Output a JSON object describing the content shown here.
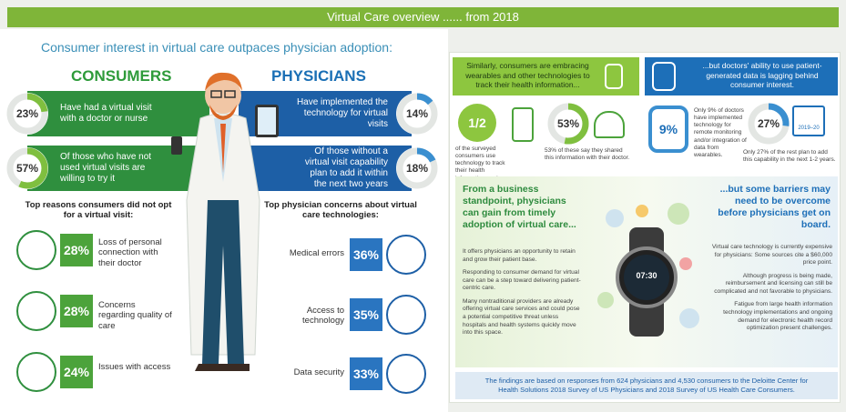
{
  "header": {
    "title": "Virtual Care overview ......  from 2018"
  },
  "left": {
    "subtitle": "Consumer interest in virtual care outpaces physician adoption:",
    "consumers": {
      "heading": "CONSUMERS",
      "stats": [
        {
          "value": 23,
          "label": "23%",
          "text": "Have had a virtual visit with a doctor or nurse"
        },
        {
          "value": 57,
          "label": "57%",
          "text": "Of those who have not used virtual visits are willing to try it"
        }
      ],
      "reasons_title": "Top reasons consumers did not opt for a virtual visit:",
      "reasons": [
        {
          "pct": "28%",
          "text": "Loss of personal connection with their doctor"
        },
        {
          "pct": "28%",
          "text": "Concerns regarding quality of care"
        },
        {
          "pct": "24%",
          "text": "Issues with access"
        }
      ]
    },
    "physicians": {
      "heading": "PHYSICIANS",
      "stats": [
        {
          "value": 14,
          "label": "14%",
          "text": "Have implemented the technology for virtual visits"
        },
        {
          "value": 18,
          "label": "18%",
          "text": "Of those without a virtual visit capability plan to add it within the next two years"
        }
      ],
      "concerns_title": "Top physician concerns about virtual care technologies:",
      "concerns": [
        {
          "pct": "36%",
          "text": "Medical errors"
        },
        {
          "pct": "35%",
          "text": "Access to technology"
        },
        {
          "pct": "33%",
          "text": "Data security"
        }
      ]
    }
  },
  "right": {
    "consumer_box": "Similarly, consumers are embracing wearables and other technologies to track their health information...",
    "fraction": "1/2",
    "fraction_text": "of the surveyed consumers use technology to track their health information, and...",
    "shared": {
      "value": 53,
      "label": "53%"
    },
    "shared_text": "53% of these say they shared this information with their doctor.",
    "doctor_box": "...but doctors' ability to use patient-generated data is lagging behind consumer interest.",
    "remote": "9%",
    "remote_text": "Only 9% of doctors have implemented technology for remote monitoring and/or integration of data from wearables.",
    "plan": {
      "value": 27,
      "label": "27%"
    },
    "calendar": "2019–20",
    "plan_text": "Only 27% of the rest plan to add this capability in the next 1-2 years.",
    "business": {
      "heading": "From a business standpoint, physicians can gain from timely adoption of virtual care...",
      "paragraphs": [
        "It offers physicians an opportunity to retain and grow their patient base.",
        "Responding to consumer demand for virtual care can be a step toward delivering patient-centric care.",
        "Many nontraditional providers are already offering virtual care services and could pose a potential competitive threat unless hospitals and health systems quickly move into this space."
      ]
    },
    "watch_time": "07:30",
    "barriers": {
      "heading": "...but some barriers may need to be overcome before physicians get on board.",
      "paragraphs": [
        "Virtual care technology is currently expensive for physicians: Some sources cite a $60,000 price point.",
        "Although progress is being made, reimbursement and licensing can still be complicated and not favorable to physicians.",
        "Fatigue from large health information technology implementations and ongoing demand for electronic health record optimization present challenges."
      ]
    },
    "footer": "The findings are based on responses from 624 physicians and 4,530 consumers to the Deloitte Center for Health Solutions 2018 Survey of US Physicians and 2018 Survey of US Health Care Consumers."
  }
}
